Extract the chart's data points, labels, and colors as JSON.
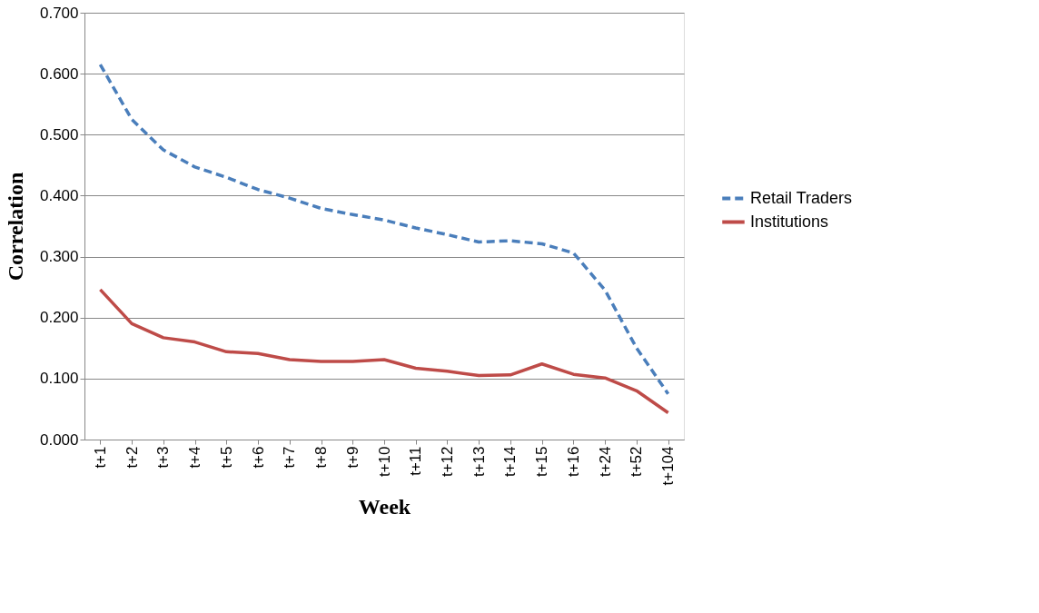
{
  "chart_data": {
    "type": "line",
    "xlabel": "Week",
    "ylabel": "Correlation",
    "categories": [
      "t+1",
      "t+2",
      "t+3",
      "t+4",
      "t+5",
      "t+6",
      "t+7",
      "t+8",
      "t+9",
      "t+10",
      "t+11",
      "t+12",
      "t+13",
      "t+14",
      "t+15",
      "t+16",
      "t+24",
      "t+52",
      "t+104"
    ],
    "series": [
      {
        "name": "Retail Traders",
        "color": "#4a7ebb",
        "line_style": "dashed",
        "values": [
          0.615,
          0.525,
          0.475,
          0.447,
          0.43,
          0.41,
          0.396,
          0.379,
          0.369,
          0.36,
          0.347,
          0.336,
          0.324,
          0.326,
          0.321,
          0.306,
          0.245,
          0.15,
          0.075
        ]
      },
      {
        "name": "Institutions",
        "color": "#be4b48",
        "line_style": "solid",
        "values": [
          0.246,
          0.19,
          0.167,
          0.16,
          0.144,
          0.141,
          0.131,
          0.128,
          0.128,
          0.131,
          0.117,
          0.112,
          0.105,
          0.106,
          0.124,
          0.107,
          0.101,
          0.08,
          0.044
        ]
      }
    ],
    "ylim": [
      0,
      0.7
    ],
    "yticks": [
      {
        "value": 0,
        "label": "0.000"
      },
      {
        "value": 0.1,
        "label": "0.100"
      },
      {
        "value": 0.2,
        "label": "0.200"
      },
      {
        "value": 0.3,
        "label": "0.300"
      },
      {
        "value": 0.4,
        "label": "0.400"
      },
      {
        "value": 0.5,
        "label": "0.500"
      },
      {
        "value": 0.6,
        "label": "0.600"
      },
      {
        "value": 0.7,
        "label": "0.700"
      }
    ],
    "grid": "y",
    "legend": "right",
    "marker": "none"
  }
}
